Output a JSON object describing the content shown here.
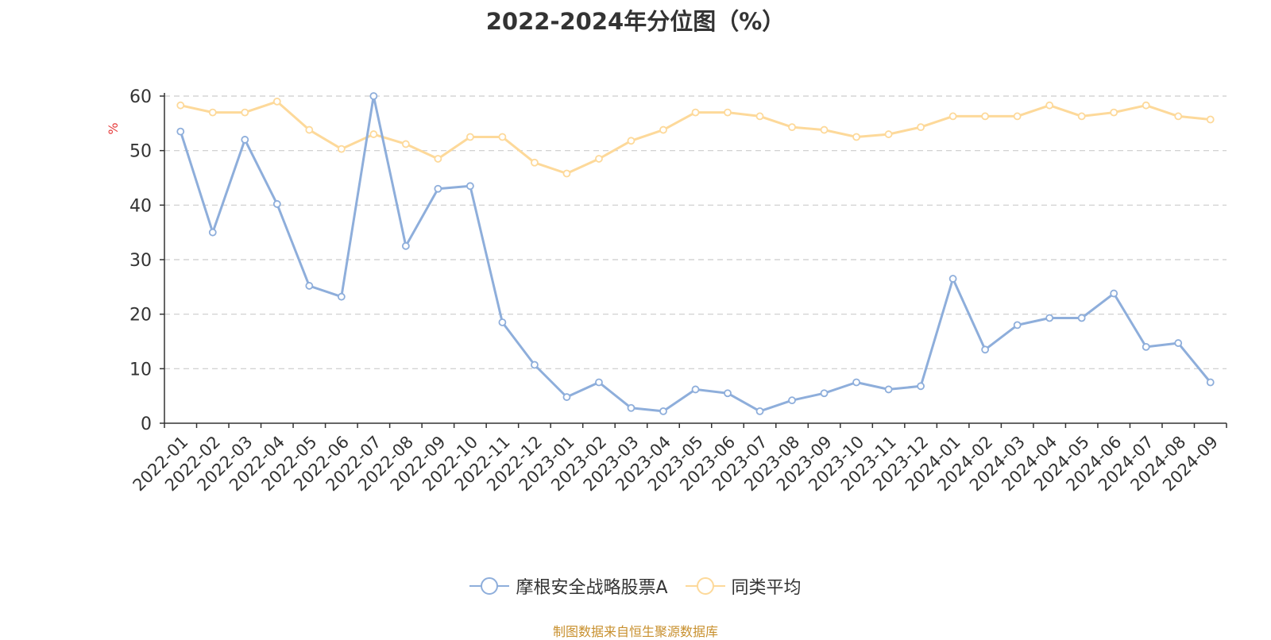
{
  "chart_data": {
    "type": "line",
    "title": "2022-2024年分位图（%）",
    "ylabel": "%",
    "xlabel": "",
    "ylim": [
      0,
      60
    ],
    "yticks": [
      0,
      10,
      20,
      30,
      40,
      50,
      60
    ],
    "grid": "horizontal dashed",
    "legend_position": "bottom",
    "categories": [
      "2022-01",
      "2022-02",
      "2022-03",
      "2022-04",
      "2022-05",
      "2022-06",
      "2022-07",
      "2022-08",
      "2022-09",
      "2022-10",
      "2022-11",
      "2022-12",
      "2023-01",
      "2023-02",
      "2023-03",
      "2023-04",
      "2023-05",
      "2023-06",
      "2023-07",
      "2023-08",
      "2023-09",
      "2023-10",
      "2023-11",
      "2023-12",
      "2024-01",
      "2024-02",
      "2024-03",
      "2024-04",
      "2024-05",
      "2024-06",
      "2024-07",
      "2024-08",
      "2024-09"
    ],
    "series": [
      {
        "name": "摩根安全战略股票A",
        "color": "#8eaedb",
        "values": [
          53.5,
          35.0,
          52.0,
          40.2,
          25.2,
          23.2,
          60.0,
          32.5,
          43.0,
          43.5,
          18.5,
          10.7,
          4.8,
          7.5,
          2.8,
          2.2,
          6.2,
          5.5,
          2.2,
          4.2,
          5.5,
          7.5,
          6.2,
          6.8,
          26.5,
          13.5,
          18.0,
          19.3,
          19.3,
          23.8,
          14.0,
          14.7,
          7.5
        ]
      },
      {
        "name": "同类平均",
        "color": "#fdd99a",
        "values": [
          58.3,
          57.0,
          57.0,
          59.0,
          53.8,
          50.3,
          53.0,
          51.2,
          48.5,
          52.5,
          52.5,
          47.8,
          45.8,
          48.5,
          51.8,
          53.8,
          57.0,
          57.0,
          56.3,
          54.3,
          53.8,
          52.5,
          53.0,
          54.3,
          56.3,
          56.3,
          56.3,
          58.3,
          56.3,
          57.0,
          58.3,
          56.3,
          55.7
        ]
      }
    ],
    "source": "制图数据来自恒生聚源数据库"
  }
}
